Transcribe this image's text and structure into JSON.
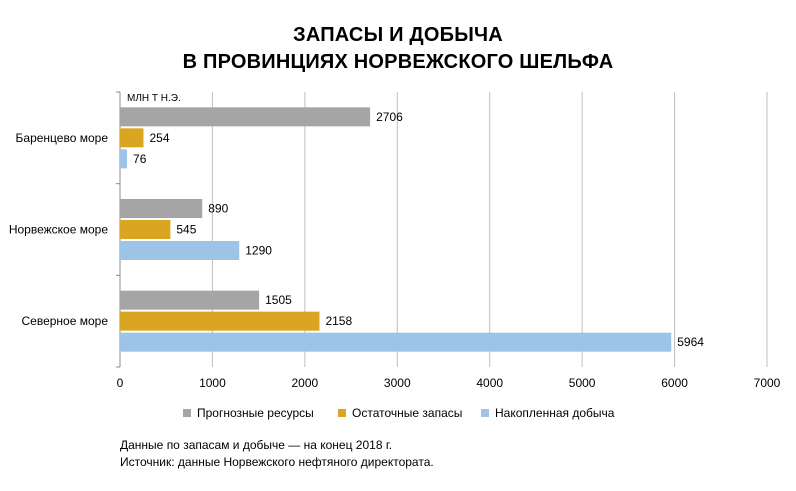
{
  "title_line1": "ЗАПАСЫ И ДОБЫЧА",
  "title_line2": "В ПРОВИНЦИЯХ НОРВЕЖСКОГО ШЕЛЬФА",
  "notes": {
    "line1": "Данные по запасам и добыче — на конец 2018 г.",
    "line2": "Источник: данные Норвежского нефтяного директората."
  },
  "chart_data": {
    "type": "bar",
    "orientation": "horizontal",
    "unit_label": "МЛН Т Н.Э.",
    "categories": [
      "Баренцево море",
      "Норвежское море",
      "Северное море"
    ],
    "series": [
      {
        "name": "Прогнозные ресурсы",
        "color": "#a5a5a5",
        "values": [
          2706,
          890,
          1505
        ]
      },
      {
        "name": "Остаточные запасы",
        "color": "#daa520",
        "values": [
          254,
          545,
          2158
        ]
      },
      {
        "name": "Накопленная добыча",
        "color": "#9dc3e6",
        "values": [
          76,
          1290,
          5964
        ]
      }
    ],
    "xlim": [
      0,
      7000
    ],
    "xticks": [
      0,
      1000,
      2000,
      3000,
      4000,
      5000,
      6000,
      7000
    ],
    "grid": true,
    "legend_position": "bottom"
  }
}
